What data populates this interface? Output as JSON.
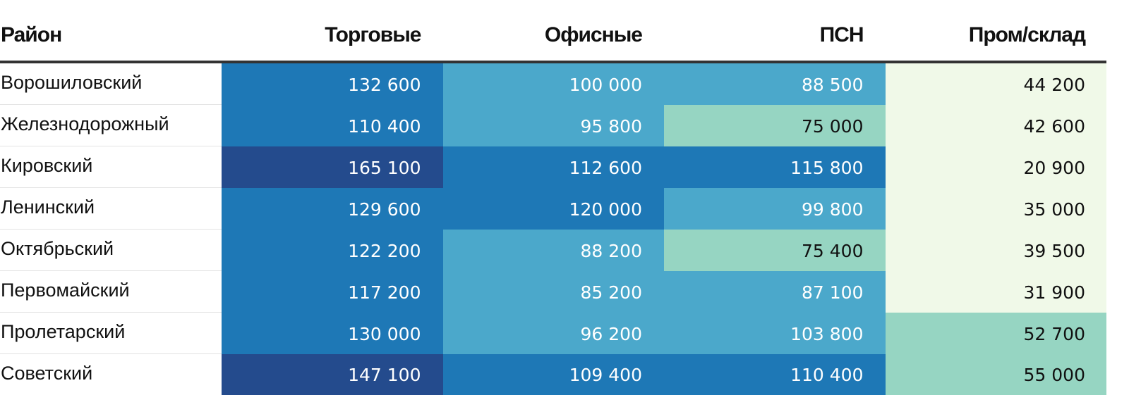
{
  "chart_data": {
    "type": "heatmap",
    "columns": [
      "Район",
      "Торговые",
      "Офисные",
      "ПСН",
      "Пром/склад"
    ],
    "rows": [
      {
        "district": "Ворошиловский",
        "values": [
          "132 600",
          "100 000",
          "88 500",
          "44 200"
        ]
      },
      {
        "district": "Железнодорожный",
        "values": [
          "110 400",
          "95 800",
          "75 000",
          "42 600"
        ]
      },
      {
        "district": "Кировский",
        "values": [
          "165 100",
          "112 600",
          "115 800",
          "20 900"
        ]
      },
      {
        "district": "Ленинский",
        "values": [
          "129 600",
          "120 000",
          "99 800",
          "35 000"
        ]
      },
      {
        "district": "Октябрьский",
        "values": [
          "122 200",
          "88 200",
          "75 400",
          "39 500"
        ]
      },
      {
        "district": "Первомайский",
        "values": [
          "117 200",
          "85 200",
          "87 100",
          "31 900"
        ]
      },
      {
        "district": "Пролетарский",
        "values": [
          "130 000",
          "96 200",
          "103 800",
          "52 700"
        ]
      },
      {
        "district": "Советский",
        "values": [
          "147 100",
          "109 400",
          "110 400",
          "55 000"
        ]
      }
    ],
    "color_scale": [
      {
        "max": 50000,
        "bg": "#f0f9e8",
        "fg": "#111111"
      },
      {
        "max": 80000,
        "bg": "#96d5c2",
        "fg": "#111111"
      },
      {
        "max": 105000,
        "bg": "#4ba8cb",
        "fg": "#ffffff"
      },
      {
        "max": 140000,
        "bg": "#1e78b6",
        "fg": "#ffffff"
      },
      {
        "max": 1000000,
        "bg": "#244b8d",
        "fg": "#ffffff"
      }
    ]
  }
}
